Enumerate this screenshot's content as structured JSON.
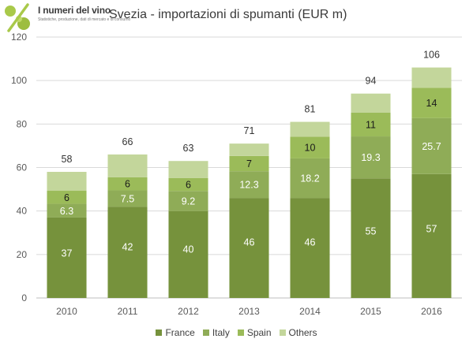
{
  "logo": {
    "title": "I numeri del vino",
    "subtitle": "Statistiche, produzione, dati di mercato e di consumo"
  },
  "chart_data": {
    "type": "bar",
    "stacked": true,
    "title": "Svezia - importazioni di spumanti (EUR m)",
    "categories": [
      "2010",
      "2011",
      "2012",
      "2013",
      "2014",
      "2015",
      "2016"
    ],
    "series": [
      {
        "name": "France",
        "color": "#76923c",
        "values": [
          37,
          42,
          40,
          46,
          46,
          55,
          57
        ],
        "labels": [
          "37",
          "42",
          "40",
          "46",
          "46",
          "55",
          "57"
        ],
        "label_color": "#ffffff"
      },
      {
        "name": "Italy",
        "color": "#8fac57",
        "values": [
          6.3,
          7.5,
          9.2,
          12.3,
          18.2,
          19.3,
          25.7
        ],
        "labels": [
          "6.3",
          "7.5",
          "9.2",
          "12.3",
          "18.2",
          "19.3",
          "25.7"
        ],
        "label_color": "#ffffff"
      },
      {
        "name": "Spain",
        "color": "#9bbb59",
        "values": [
          6,
          6,
          6,
          7,
          10,
          11,
          14
        ],
        "labels": [
          "6",
          "6",
          "6",
          "7",
          "10",
          "11",
          "14"
        ],
        "label_color": "#1a1a1a"
      },
      {
        "name": "Others",
        "color": "#c3d69b",
        "values": [
          8.7,
          10.5,
          7.8,
          5.7,
          6.8,
          8.7,
          9.3
        ],
        "labels": [
          "",
          "",
          "",
          "",
          "",
          "",
          ""
        ],
        "label_color": "#1a1a1a"
      }
    ],
    "totals": [
      "58",
      "66",
      "63",
      "71",
      "81",
      "94",
      "106"
    ],
    "ylim": [
      0,
      120
    ],
    "yticks": [
      0,
      20,
      40,
      60,
      80,
      100,
      120
    ],
    "grid": true,
    "legend_position": "bottom"
  }
}
